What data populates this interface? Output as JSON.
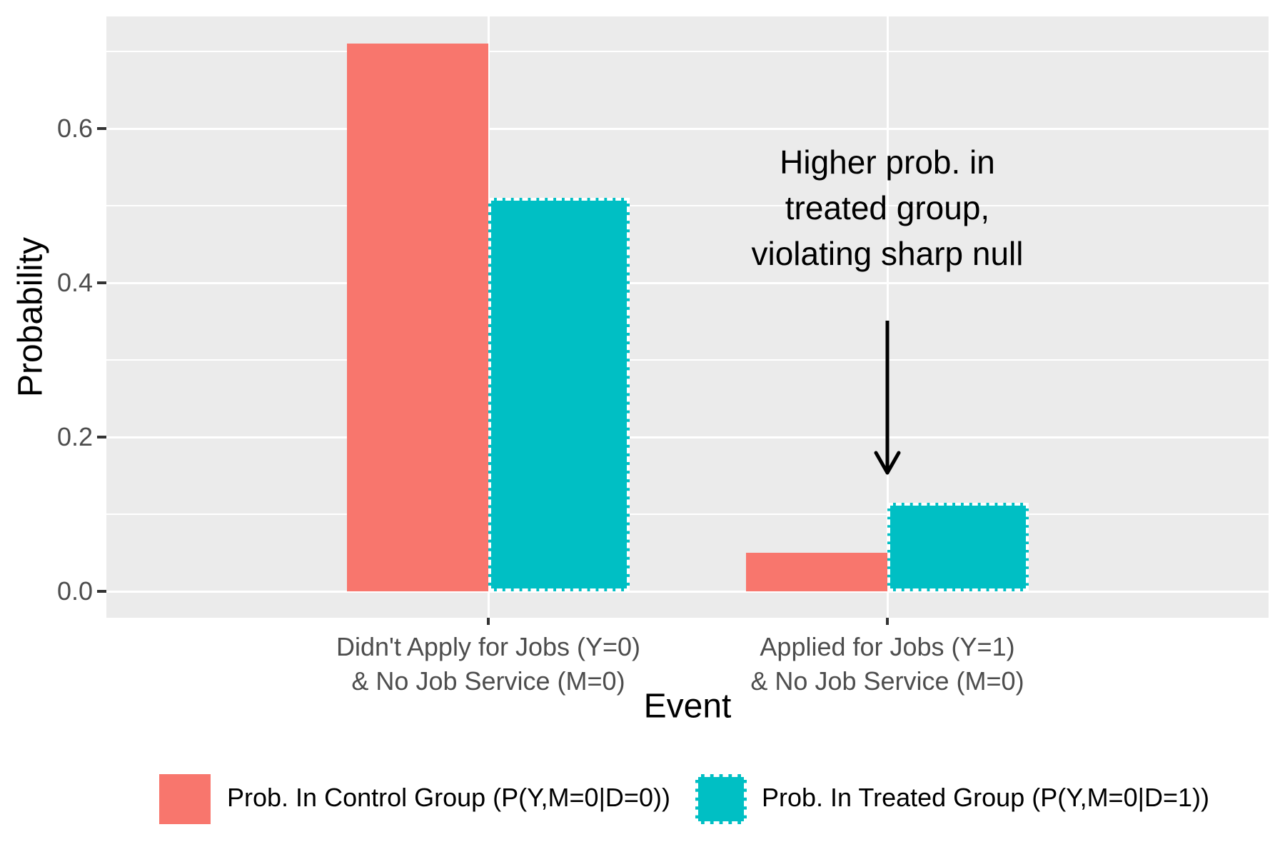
{
  "chart_data": {
    "type": "bar",
    "title": "",
    "xlabel": "Event",
    "ylabel": "Probability",
    "categories": [
      [
        "Didn't Apply for Jobs (Y=0)",
        "& No Job Service (M=0)"
      ],
      [
        "Applied for Jobs (Y=1)",
        "& No Job Service (M=0)"
      ]
    ],
    "series": [
      {
        "name": "Prob. In Control Group (P(Y,M=0|D=0))",
        "color": "#F8766D",
        "border": "none",
        "values": [
          0.71,
          0.05
        ]
      },
      {
        "name": "Prob. In Treated Group (P(Y,M=0|D=1))",
        "color": "#00BFC4",
        "border": "dashed-white",
        "values": [
          0.51,
          0.115
        ]
      }
    ],
    "y_ticks_major": [
      0.0,
      0.2,
      0.4,
      0.6
    ],
    "y_ticks_minor": [
      0.1,
      0.3,
      0.5,
      0.7
    ],
    "ylim": [
      0,
      0.745
    ],
    "grid": "horizontal major+minor white on grey panel; vertical major at category centers",
    "legend_position": "bottom",
    "panel_background": "#EBEBEB",
    "gridline_color": "#FFFFFF",
    "tick_label_color": "#4D4D4D",
    "tick_mark_color": "#333333",
    "annotation": {
      "lines": [
        "Higher prob. in",
        "treated group,",
        "violating sharp null"
      ],
      "arrow_target": "top of treated-group bar in second category"
    }
  }
}
